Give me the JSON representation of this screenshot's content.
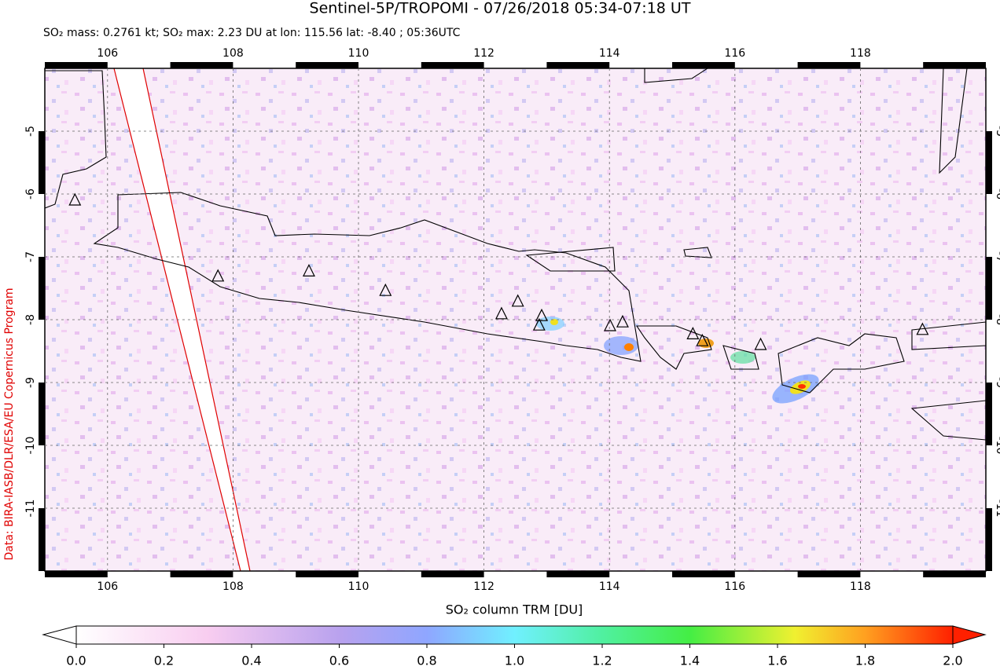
{
  "title": "Sentinel-5P/TROPOMI - 07/26/2018 05:34-07:18 UT",
  "subtitle": "SO₂ mass: 0.2761 kt; SO₂ max: 2.23 DU at lon: 115.56 lat: -8.40 ; 05:36UTC",
  "credit": "Data: BIRA-IASB/DLR/ESA/EU Copernicus Program",
  "map": {
    "xlim": [
      105,
      120
    ],
    "ylim": [
      -12,
      -4
    ],
    "xticks": [
      106,
      108,
      110,
      112,
      114,
      116,
      118
    ],
    "yticks": [
      -5,
      -6,
      -7,
      -8,
      -9,
      -10,
      -11
    ],
    "grid": true,
    "volcanoes": {
      "lon": [
        105.48,
        107.76,
        109.21,
        110.43,
        112.28,
        112.54,
        112.92,
        112.88,
        114.01,
        114.21,
        115.33,
        115.48,
        116.41,
        118.99
      ],
      "lat": [
        -6.1,
        -7.31,
        -7.23,
        -7.54,
        -7.91,
        -7.71,
        -7.94,
        -8.09,
        -8.1,
        -8.04,
        -8.23,
        -8.34,
        -8.4,
        -8.16
      ]
    }
  },
  "colorbar": {
    "label": "SO₂ column TRM [DU]",
    "ticks": [
      {
        "value": 0,
        "label": "0.0"
      },
      0.2,
      0.4,
      0.6,
      0.8,
      {
        "value": 1,
        "label": "1.0"
      },
      1.2,
      1.4,
      1.6,
      1.8,
      {
        "value": 2,
        "label": "2.0"
      }
    ]
  }
}
